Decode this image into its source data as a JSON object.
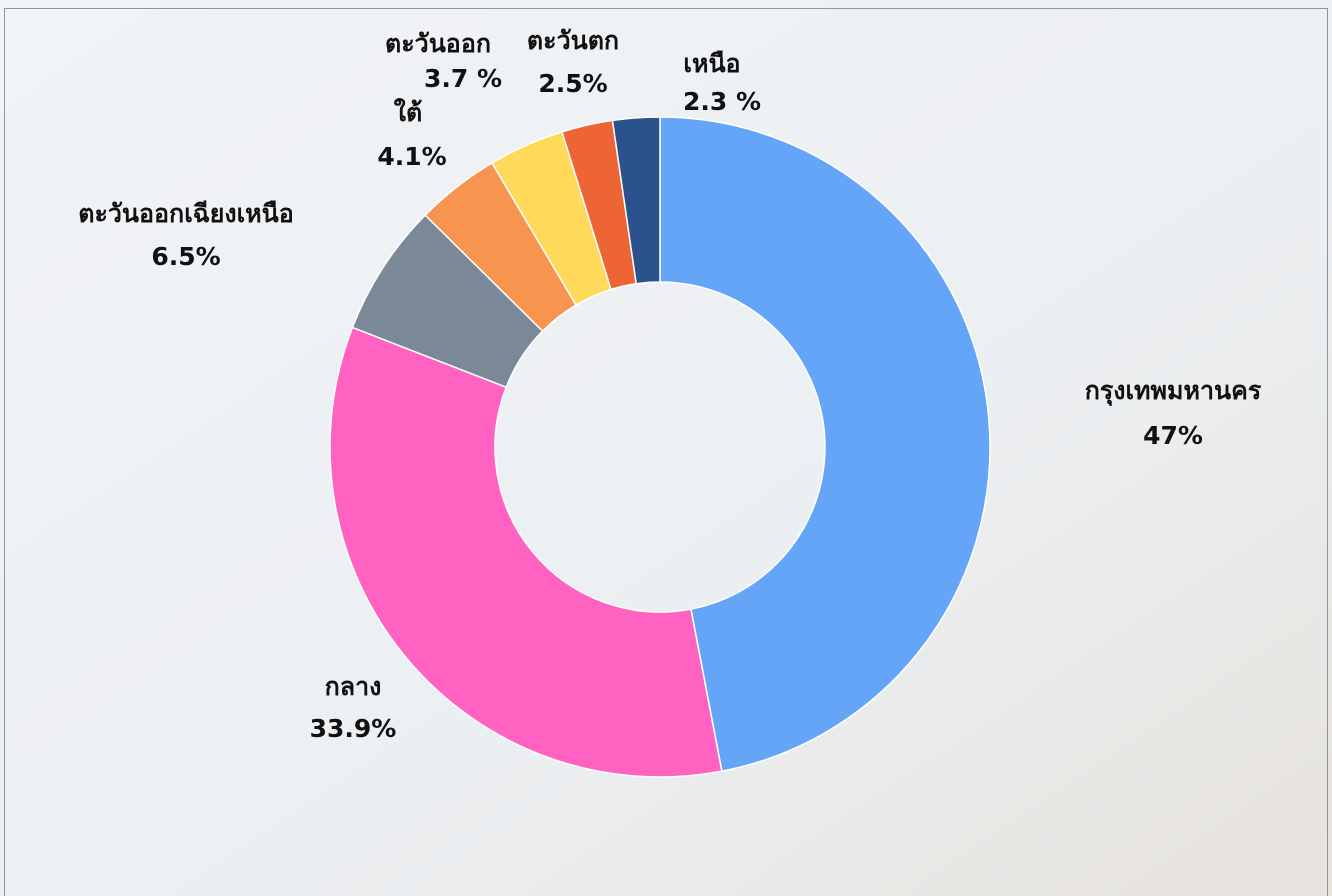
{
  "chart_data": {
    "type": "donut",
    "categories": [
      "กรุงเทพมหานคร",
      "กลาง",
      "ตะวันออกเฉียงเหนือ",
      "ใต้",
      "ตะวันออก",
      "ตะวันตก",
      "เหนือ"
    ],
    "values": [
      47,
      33.9,
      6.5,
      4.1,
      3.7,
      2.5,
      2.3
    ],
    "value_labels": [
      "47%",
      "33.9%",
      "6.5%",
      "4.1%",
      "3.7 %",
      "2.5%",
      "2.3 %"
    ],
    "colors": [
      "#64a5f8",
      "#ff62c0",
      "#7a8898",
      "#f79550",
      "#ffd95a",
      "#ee6535",
      "#2b528c"
    ]
  }
}
